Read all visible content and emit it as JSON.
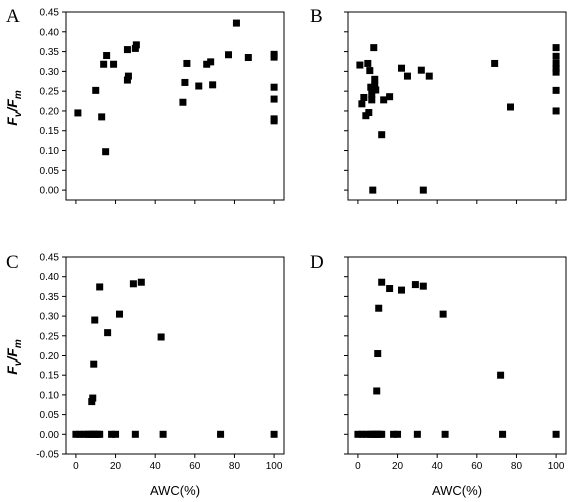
{
  "figure": {
    "ylabel_main": "F",
    "ylabel_sub_v": "v",
    "ylabel_slash": "/F",
    "ylabel_sub_m": "m",
    "xlabel": "AWC(%)"
  },
  "chart_data": [
    {
      "type": "scatter",
      "panel": "A",
      "xlim": [
        -5,
        105
      ],
      "ylim": [
        -0.025,
        0.45
      ],
      "xticks": [
        0,
        20,
        40,
        60,
        80,
        100
      ],
      "yticks": [
        0.0,
        0.05,
        0.1,
        0.15,
        0.2,
        0.25,
        0.3,
        0.35,
        0.4,
        0.45
      ],
      "ytick_labels": [
        "0.00",
        "0.05",
        "0.10",
        "0.15",
        "0.20",
        "0.25",
        "0.30",
        "0.35",
        "0.40",
        "0.45"
      ],
      "x": [
        1,
        10,
        13,
        14,
        15,
        15.5,
        19,
        26,
        26.5,
        26,
        30,
        30.5,
        54,
        55,
        56,
        62,
        66,
        68,
        69,
        77,
        81,
        87,
        100,
        100,
        100,
        100,
        100,
        100
      ],
      "y": [
        0.195,
        0.252,
        0.185,
        0.318,
        0.097,
        0.34,
        0.318,
        0.355,
        0.288,
        0.278,
        0.358,
        0.367,
        0.222,
        0.272,
        0.32,
        0.263,
        0.318,
        0.324,
        0.266,
        0.342,
        0.422,
        0.335,
        0.343,
        0.336,
        0.26,
        0.23,
        0.18,
        0.175
      ]
    },
    {
      "type": "scatter",
      "panel": "B",
      "xlim": [
        -5,
        105
      ],
      "ylim": [
        -0.025,
        0.45
      ],
      "xticks": [
        0,
        20,
        40,
        60,
        80,
        100
      ],
      "yticks": [
        0.0,
        0.05,
        0.1,
        0.15,
        0.2,
        0.25,
        0.3,
        0.35,
        0.4,
        0.45
      ],
      "x": [
        1,
        2,
        3,
        4,
        5,
        5.5,
        6,
        6.5,
        7,
        7,
        7.5,
        8,
        8.5,
        8.5,
        9,
        12,
        13,
        16,
        22,
        25,
        32,
        33,
        36,
        69,
        77,
        100,
        100,
        100,
        100,
        100,
        100,
        100
      ],
      "y": [
        0.316,
        0.218,
        0.234,
        0.188,
        0.32,
        0.196,
        0.302,
        0.26,
        0.228,
        0.243,
        0.0,
        0.36,
        0.28,
        0.265,
        0.253,
        0.14,
        0.228,
        0.236,
        0.308,
        0.288,
        0.303,
        0.0,
        0.288,
        0.32,
        0.21,
        0.36,
        0.338,
        0.32,
        0.307,
        0.298,
        0.252,
        0.2
      ]
    },
    {
      "type": "scatter",
      "panel": "C",
      "xlim": [
        -5,
        105
      ],
      "ylim": [
        -0.05,
        0.45
      ],
      "xticks": [
        0,
        20,
        40,
        60,
        80,
        100
      ],
      "yticks": [
        -0.05,
        0.0,
        0.05,
        0.1,
        0.15,
        0.2,
        0.25,
        0.3,
        0.35,
        0.4,
        0.45
      ],
      "ytick_labels": [
        "-0.05",
        "0.00",
        "0.05",
        "0.10",
        "0.15",
        "0.20",
        "0.25",
        "0.30",
        "0.35",
        "0.40",
        "0.45"
      ],
      "x": [
        0,
        2,
        4,
        6,
        7,
        8,
        9,
        10,
        11,
        12,
        18,
        20,
        30,
        44,
        73,
        100,
        8,
        8.5,
        9,
        9.5,
        12,
        16,
        22,
        29,
        33,
        43
      ],
      "y": [
        0,
        0,
        0,
        0,
        0,
        0,
        0,
        0,
        0,
        0,
        0,
        0,
        0,
        0,
        0,
        0,
        0.083,
        0.092,
        0.178,
        0.29,
        0.374,
        0.258,
        0.305,
        0.382,
        0.386,
        0.247
      ]
    },
    {
      "type": "scatter",
      "panel": "D",
      "xlim": [
        -5,
        105
      ],
      "ylim": [
        -0.05,
        0.45
      ],
      "xticks": [
        0,
        20,
        40,
        60,
        80,
        100
      ],
      "yticks": [
        -0.05,
        0.0,
        0.05,
        0.1,
        0.15,
        0.2,
        0.25,
        0.3,
        0.35,
        0.4,
        0.45
      ],
      "x": [
        0,
        2,
        4,
        6,
        7,
        8,
        9,
        10,
        11,
        12,
        18,
        20,
        30,
        44,
        73,
        100,
        9.5,
        10,
        10.5,
        12,
        16,
        22,
        29,
        33,
        43,
        72
      ],
      "y": [
        0,
        0,
        0,
        0,
        0,
        0,
        0,
        0,
        0,
        0,
        0,
        0,
        0,
        0,
        0,
        0,
        0.11,
        0.205,
        0.32,
        0.386,
        0.37,
        0.366,
        0.38,
        0.376,
        0.305,
        0.15
      ]
    }
  ]
}
